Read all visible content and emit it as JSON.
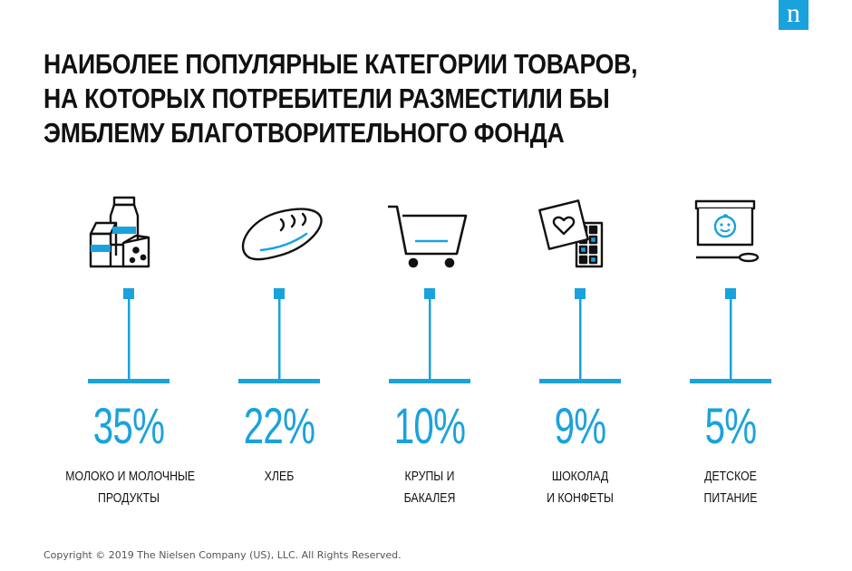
{
  "brand": {
    "logo_letter": "n",
    "accent": "#1aa2dd"
  },
  "title_lines": [
    "НАИБОЛЕЕ ПОПУЛЯРНЫЕ КАТЕГОРИИ ТОВАРОВ,",
    "НА КОТОРЫХ ПОТРЕБИТЕЛИ РАЗМЕСТИЛИ БЫ",
    "ЭМБЛЕМУ БЛАГОТВОРИТЕЛЬНОГО ФОНДА"
  ],
  "chart_data": {
    "type": "bar",
    "title": "НАИБОЛЕЕ ПОПУЛЯРНЫЕ КАТЕГОРИИ ТОВАРОВ, НА КОТОРЫХ ПОТРЕБИТЕЛИ РАЗМЕСТИЛИ БЫ ЭМБЛЕМУ БЛАГОТВОРИТЕЛЬНОГО ФОНДА",
    "unit": "%",
    "categories": [
      {
        "label_lines": [
          "МОЛОКО И МОЛОЧНЫЕ",
          "ПРОДУКТЫ"
        ],
        "value": 35,
        "value_label": "35%",
        "icon": "dairy-icon"
      },
      {
        "label_lines": [
          "ХЛЕБ"
        ],
        "value": 22,
        "value_label": "22%",
        "icon": "bread-icon"
      },
      {
        "label_lines": [
          "КРУПЫ И",
          "БАКАЛЕЯ"
        ],
        "value": 10,
        "value_label": "10%",
        "icon": "shopping-cart-icon"
      },
      {
        "label_lines": [
          "ШОКОЛАД",
          "И КОНФЕТЫ"
        ],
        "value": 9,
        "value_label": "9%",
        "icon": "chocolate-icon"
      },
      {
        "label_lines": [
          "ДЕТСКОЕ",
          "ПИТАНИЕ"
        ],
        "value": 5,
        "value_label": "5%",
        "icon": "baby-food-icon"
      }
    ]
  },
  "footer": {
    "copyright": "Copyright © 2019 The Nielsen Company (US), LLC. All Rights Reserved."
  }
}
